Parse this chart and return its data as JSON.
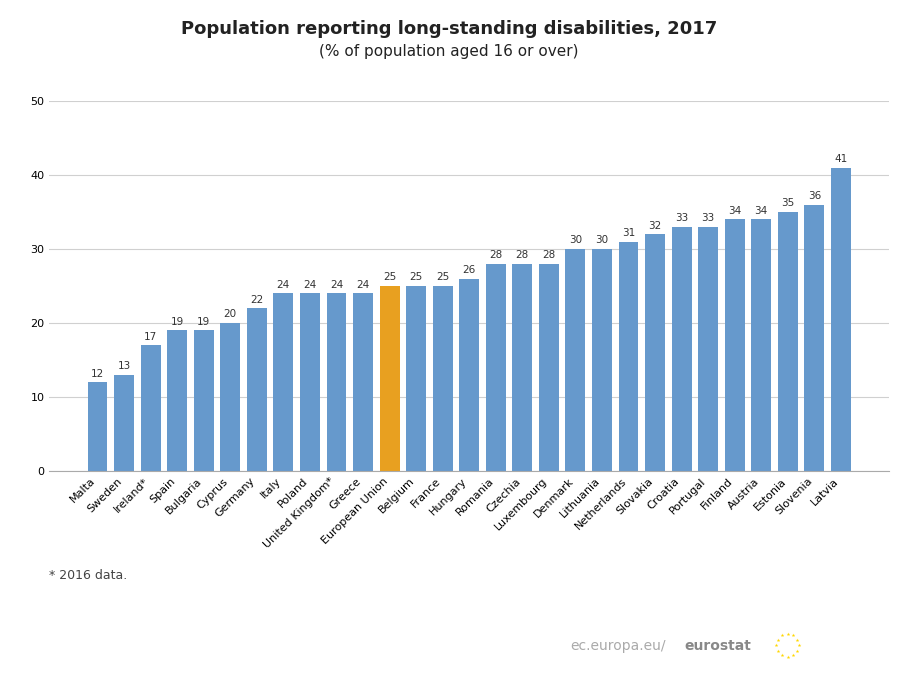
{
  "title_line1": "Population reporting long-standing disabilities, 2017",
  "title_line2": "(% of population aged 16 or over)",
  "footnote": "* 2016 data.",
  "categories": [
    "Malta",
    "Sweden",
    "Ireland*",
    "Spain",
    "Bulgaria",
    "Cyprus",
    "Germany",
    "Italy",
    "Poland",
    "United Kingdom*",
    "Greece",
    "European Union",
    "Belgium",
    "France",
    "Hungary",
    "Romania",
    "Czechia",
    "Luxembourg",
    "Denmark",
    "Lithuania",
    "Netherlands",
    "Slovakia",
    "Croatia",
    "Portugal",
    "Finland",
    "Austria",
    "Estonia",
    "Slovenia",
    "Latvia"
  ],
  "values": [
    12,
    13,
    17,
    19,
    19,
    20,
    22,
    24,
    24,
    24,
    24,
    25,
    25,
    25,
    26,
    28,
    28,
    28,
    30,
    30,
    31,
    32,
    33,
    33,
    34,
    34,
    35,
    36,
    41
  ],
  "bar_colors": [
    "#6699cc",
    "#6699cc",
    "#6699cc",
    "#6699cc",
    "#6699cc",
    "#6699cc",
    "#6699cc",
    "#6699cc",
    "#6699cc",
    "#6699cc",
    "#6699cc",
    "#e8a020",
    "#6699cc",
    "#6699cc",
    "#6699cc",
    "#6699cc",
    "#6699cc",
    "#6699cc",
    "#6699cc",
    "#6699cc",
    "#6699cc",
    "#6699cc",
    "#6699cc",
    "#6699cc",
    "#6699cc",
    "#6699cc",
    "#6699cc",
    "#6699cc",
    "#6699cc"
  ],
  "ylim": [
    0,
    50
  ],
  "yticks": [
    0,
    10,
    20,
    30,
    40,
    50
  ],
  "background_color": "#ffffff",
  "grid_color": "#d0d0d0",
  "label_fontsize": 7.5,
  "tick_label_fontsize": 8,
  "title_fontsize": 13,
  "subtitle_fontsize": 11,
  "footnote_fontsize": 9,
  "watermark_fontsize": 10
}
